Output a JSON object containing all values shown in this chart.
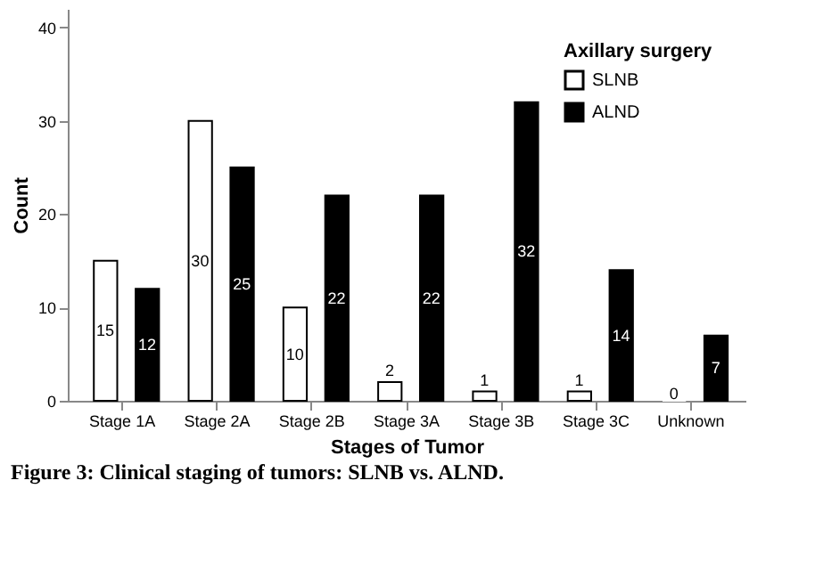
{
  "chart_data": {
    "type": "bar",
    "xlabel": "Stages of Tumor",
    "ylabel": "Count",
    "legend_title": "Axillary surgery",
    "categories": [
      "Stage 1A",
      "Stage 2A",
      "Stage 2B",
      "Stage 3A",
      "Stage 3B",
      "Stage 3C",
      "Unknown"
    ],
    "series": [
      {
        "name": "SLNB",
        "color": "#ffffff",
        "values": [
          15,
          30,
          10,
          2,
          1,
          1,
          0
        ]
      },
      {
        "name": "ALND",
        "color": "#000000",
        "values": [
          12,
          25,
          22,
          22,
          32,
          14,
          7
        ]
      }
    ],
    "ylim": [
      0,
      42
    ],
    "yticks": [
      0,
      10,
      20,
      30,
      40
    ],
    "grid": false,
    "legend": "top right",
    "data_labels": true,
    "annotations": [
      "Figure 3: Clinical staging of tumors: SLNB vs. ALND."
    ]
  }
}
